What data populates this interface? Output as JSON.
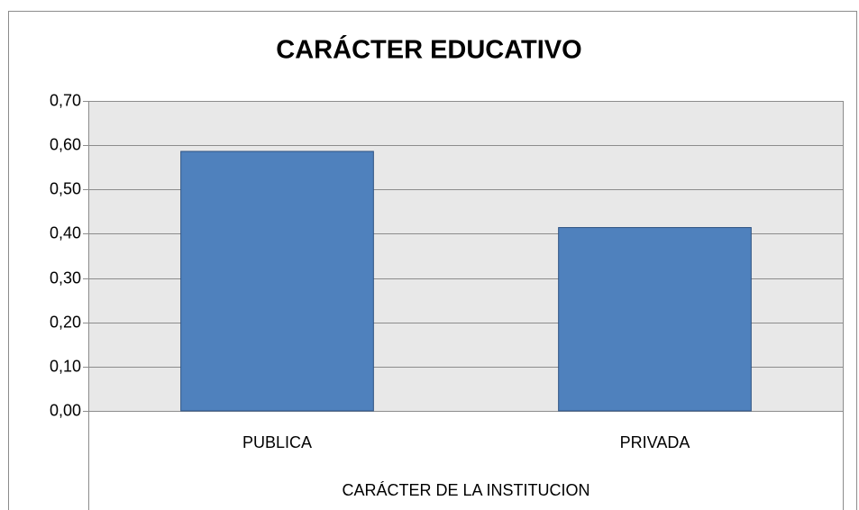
{
  "chart_data": {
    "type": "bar",
    "title": "CARÁCTER EDUCATIVO",
    "x_label": "CARÁCTER DE LA INSTITUCION",
    "categories": [
      "PUBLICA",
      "PRIVADA"
    ],
    "values": [
      0.586,
      0.414
    ],
    "color": "#4f81bd",
    "ylim": [
      0,
      0.7
    ],
    "yticks": [
      {
        "value": 0,
        "label": "0,00"
      },
      {
        "value": 0.1,
        "label": "0,10"
      },
      {
        "value": 0.2,
        "label": "0,20"
      },
      {
        "value": 0.3,
        "label": "0,30"
      },
      {
        "value": 0.4,
        "label": "0,40"
      },
      {
        "value": 0.5,
        "label": "0,50"
      },
      {
        "value": 0.6,
        "label": "0,60"
      },
      {
        "value": 0.7,
        "label": "0,70"
      }
    ],
    "grid": true
  }
}
